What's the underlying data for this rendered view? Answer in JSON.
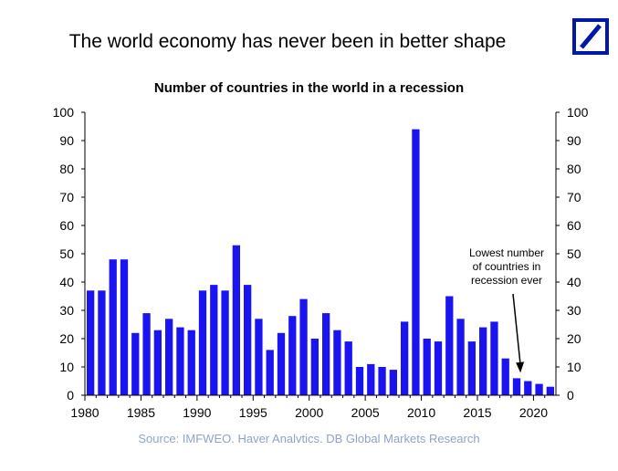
{
  "header": {
    "headline": "The world economy has never been in better shape",
    "logo_color": "#0018a8"
  },
  "footer": {
    "source": "Source: IMFWEO. Haver Analvtics. DB Global Markets Research"
  },
  "chart_data": {
    "type": "bar",
    "title": "Number of countries in the world in a recession",
    "xlabel": "",
    "ylabel": "",
    "ylim": [
      0,
      100
    ],
    "y_ticks": [
      0,
      10,
      20,
      30,
      40,
      50,
      60,
      70,
      80,
      90,
      100
    ],
    "x_tick_labels": [
      "1980",
      "1985",
      "1990",
      "1995",
      "2000",
      "2005",
      "2010",
      "2015",
      "2020"
    ],
    "bar_color": "#1a14f0",
    "grid": false,
    "dual_y_axis": true,
    "categories": [
      1980,
      1981,
      1982,
      1983,
      1984,
      1985,
      1986,
      1987,
      1988,
      1989,
      1990,
      1991,
      1992,
      1993,
      1994,
      1995,
      1996,
      1997,
      1998,
      1999,
      2000,
      2001,
      2002,
      2003,
      2004,
      2005,
      2006,
      2007,
      2008,
      2009,
      2010,
      2011,
      2012,
      2013,
      2014,
      2015,
      2016,
      2017,
      2018,
      2019,
      2020,
      2021
    ],
    "values": [
      37,
      37,
      48,
      48,
      22,
      29,
      23,
      27,
      24,
      23,
      37,
      39,
      37,
      53,
      39,
      27,
      16,
      22,
      28,
      34,
      20,
      29,
      23,
      19,
      10,
      11,
      10,
      9,
      26,
      94,
      20,
      19,
      35,
      27,
      19,
      24,
      26,
      13,
      6,
      5,
      4,
      3
    ],
    "annotation": {
      "text_lines": [
        "Lowest number",
        "of countries in",
        "recession ever"
      ]
    }
  }
}
